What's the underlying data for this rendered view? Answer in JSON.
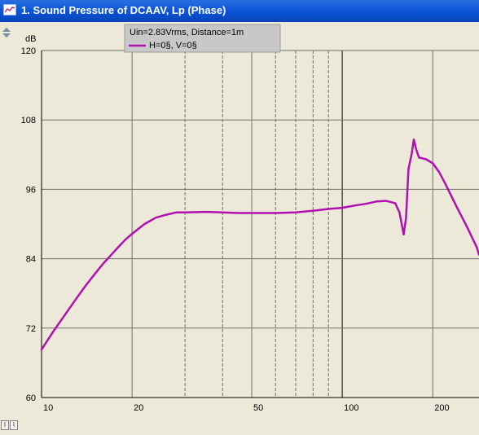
{
  "window": {
    "title": "1. Sound Pressure of DCAAV, Lp (Phase)"
  },
  "legend": {
    "conditions": "Uin=2.83Vrms, Distance=1m",
    "series_label": "H=0§, V=0§"
  },
  "colors": {
    "curve": "#b010b0",
    "title_bar": "#0a52d6",
    "legend_bg": "#c8c8c8"
  },
  "side_controls": {
    "zoom_icon": "zoom-icon"
  },
  "bottom_controls": {
    "left_icon": "cursor-icon",
    "right_icon": "marker-icon"
  },
  "chart_data": {
    "type": "line",
    "title": "",
    "xlabel": "",
    "ylabel": "dB",
    "x_scale": "log",
    "xlim": [
      10,
      285
    ],
    "ylim": [
      60,
      120
    ],
    "yticks": [
      60,
      72,
      84,
      96,
      108,
      120
    ],
    "xtick_labels": [
      "10",
      "20",
      "50",
      "100",
      "200"
    ],
    "xtick_values": [
      10,
      20,
      50,
      100,
      200
    ],
    "grid": true,
    "series": [
      {
        "name": "H=0§, V=0§",
        "x": [
          10,
          11,
          12,
          13,
          14,
          15,
          16,
          17,
          18,
          19,
          20,
          22,
          24,
          26,
          28,
          30,
          35,
          40,
          45,
          50,
          60,
          70,
          80,
          90,
          100,
          110,
          120,
          130,
          140,
          150,
          155,
          160,
          163,
          166,
          170,
          173,
          176,
          180,
          190,
          200,
          210,
          220,
          240,
          260,
          280,
          285
        ],
        "y": [
          68.3,
          71.6,
          74.4,
          77.0,
          79.3,
          81.3,
          83.1,
          84.6,
          86.0,
          87.3,
          88.3,
          90.0,
          91.1,
          91.6,
          92.0,
          92.0,
          92.1,
          92.0,
          91.9,
          91.9,
          91.9,
          92.0,
          92.3,
          92.6,
          92.8,
          93.2,
          93.5,
          93.9,
          94.0,
          93.6,
          92.0,
          88.2,
          91.0,
          99.5,
          102.0,
          104.6,
          103.0,
          101.5,
          101.2,
          100.5,
          99.0,
          97.0,
          93.0,
          89.5,
          86.0,
          84.7
        ]
      }
    ]
  }
}
